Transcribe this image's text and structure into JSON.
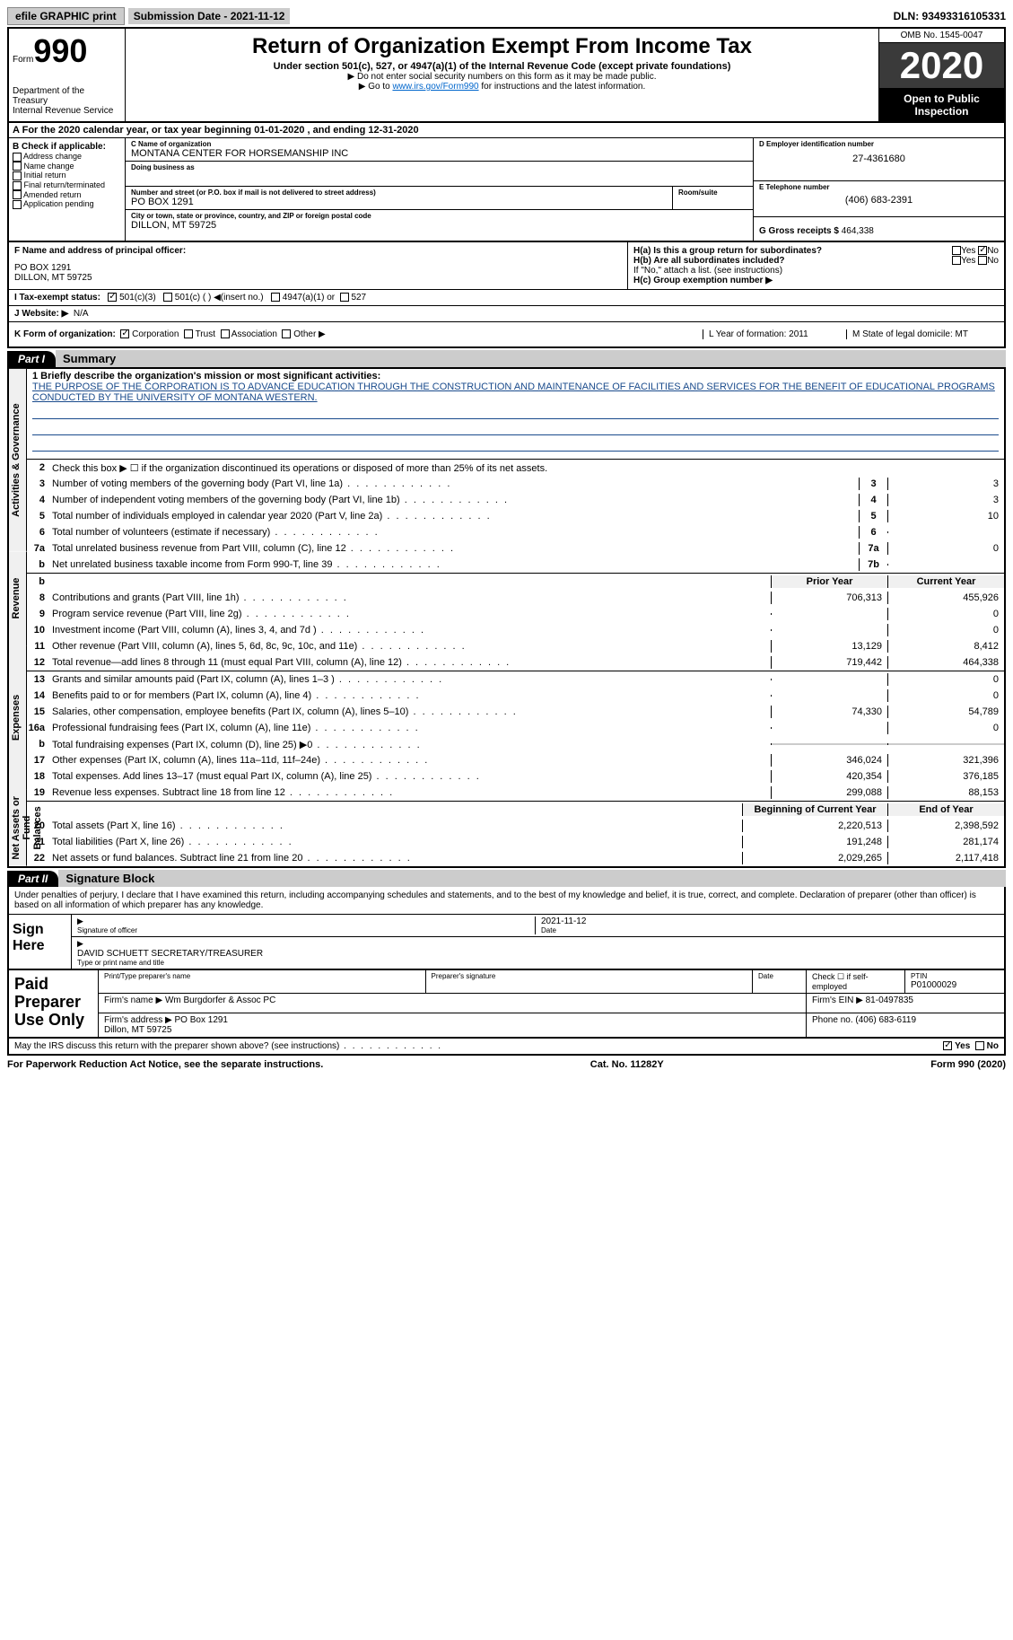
{
  "topbar": {
    "efile": "efile GRAPHIC print",
    "submission_label": "Submission Date - 2021-11-12",
    "dln": "DLN: 93493316105331"
  },
  "header": {
    "form_word": "Form",
    "form_num": "990",
    "dept": "Department of the Treasury\nInternal Revenue Service",
    "title": "Return of Organization Exempt From Income Tax",
    "sub": "Under section 501(c), 527, or 4947(a)(1) of the Internal Revenue Code (except private foundations)",
    "note1": "▶ Do not enter social security numbers on this form as it may be made public.",
    "note2_pre": "▶ Go to ",
    "note2_link": "www.irs.gov/Form990",
    "note2_post": " for instructions and the latest information.",
    "omb": "OMB No. 1545-0047",
    "year": "2020",
    "inspect": "Open to Public Inspection"
  },
  "row_a": "For the 2020 calendar year, or tax year beginning 01-01-2020   , and ending 12-31-2020",
  "col_b": {
    "label": "B Check if applicable:",
    "items": [
      "Address change",
      "Name change",
      "Initial return",
      "Final return/terminated",
      "Amended return",
      "Application pending"
    ]
  },
  "col_c": {
    "name_label": "C Name of organization",
    "name": "MONTANA CENTER FOR HORSEMANSHIP INC",
    "dba_label": "Doing business as",
    "dba": "",
    "street_label": "Number and street (or P.O. box if mail is not delivered to street address)",
    "street": "PO BOX 1291",
    "room_label": "Room/suite",
    "room": "",
    "city_label": "City or town, state or province, country, and ZIP or foreign postal code",
    "city": "DILLON, MT  59725"
  },
  "col_de": {
    "d_label": "D Employer identification number",
    "d_val": "27-4361680",
    "e_label": "E Telephone number",
    "e_val": "(406) 683-2391",
    "g_label": "G Gross receipts $",
    "g_val": "464,338"
  },
  "row_f": {
    "label": "F  Name and address of principal officer:",
    "addr1": "PO BOX 1291",
    "addr2": "DILLON, MT  59725"
  },
  "row_h": {
    "ha": "H(a)  Is this a group return for subordinates?",
    "ha_yes": "Yes",
    "ha_no": "No",
    "hb": "H(b)  Are all subordinates included?",
    "hb_yes": "Yes",
    "hb_no": "No",
    "hb_note": "If \"No,\" attach a list. (see instructions)",
    "hc": "H(c)  Group exemption number ▶"
  },
  "row_i": {
    "label": "I   Tax-exempt status:",
    "o1": "501(c)(3)",
    "o2": "501(c) (  ) ◀(insert no.)",
    "o3": "4947(a)(1) or",
    "o4": "527"
  },
  "row_j": {
    "label": "J   Website: ▶",
    "val": "N/A"
  },
  "row_k": {
    "label": "K Form of organization:",
    "o1": "Corporation",
    "o2": "Trust",
    "o3": "Association",
    "o4": "Other ▶",
    "l": "L Year of formation: 2011",
    "m": "M State of legal domicile: MT"
  },
  "part1": {
    "tab": "Part I",
    "title": "Summary",
    "mission_label": "1  Briefly describe the organization's mission or most significant activities:",
    "mission": "THE PURPOSE OF THE CORPORATION IS TO ADVANCE EDUCATION THROUGH THE CONSTRUCTION AND MAINTENANCE OF FACILITIES AND SERVICES FOR THE BENEFIT OF EDUCATIONAL PROGRAMS CONDUCTED BY THE UNIVERSITY OF MONTANA WESTERN.",
    "line2": "Check this box ▶ ☐  if the organization discontinued its operations or disposed of more than 25% of its net assets.",
    "hdr_prior": "Prior Year",
    "hdr_current": "Current Year",
    "hdr_begin": "Beginning of Current Year",
    "hdr_end": "End of Year",
    "rows_gov": [
      {
        "n": "3",
        "d": "Number of voting members of the governing body (Part VI, line 1a)",
        "c": "3",
        "v": "3"
      },
      {
        "n": "4",
        "d": "Number of independent voting members of the governing body (Part VI, line 1b)",
        "c": "4",
        "v": "3"
      },
      {
        "n": "5",
        "d": "Total number of individuals employed in calendar year 2020 (Part V, line 2a)",
        "c": "5",
        "v": "10"
      },
      {
        "n": "6",
        "d": "Total number of volunteers (estimate if necessary)",
        "c": "6",
        "v": ""
      },
      {
        "n": "7a",
        "d": "Total unrelated business revenue from Part VIII, column (C), line 12",
        "c": "7a",
        "v": "0"
      },
      {
        "n": "b",
        "d": "Net unrelated business taxable income from Form 990-T, line 39",
        "c": "7b",
        "v": ""
      }
    ],
    "rows_rev": [
      {
        "n": "8",
        "d": "Contributions and grants (Part VIII, line 1h)",
        "p": "706,313",
        "v": "455,926"
      },
      {
        "n": "9",
        "d": "Program service revenue (Part VIII, line 2g)",
        "p": "",
        "v": "0"
      },
      {
        "n": "10",
        "d": "Investment income (Part VIII, column (A), lines 3, 4, and 7d )",
        "p": "",
        "v": "0"
      },
      {
        "n": "11",
        "d": "Other revenue (Part VIII, column (A), lines 5, 6d, 8c, 9c, 10c, and 11e)",
        "p": "13,129",
        "v": "8,412"
      },
      {
        "n": "12",
        "d": "Total revenue—add lines 8 through 11 (must equal Part VIII, column (A), line 12)",
        "p": "719,442",
        "v": "464,338"
      }
    ],
    "rows_exp": [
      {
        "n": "13",
        "d": "Grants and similar amounts paid (Part IX, column (A), lines 1–3 )",
        "p": "",
        "v": "0"
      },
      {
        "n": "14",
        "d": "Benefits paid to or for members (Part IX, column (A), line 4)",
        "p": "",
        "v": "0"
      },
      {
        "n": "15",
        "d": "Salaries, other compensation, employee benefits (Part IX, column (A), lines 5–10)",
        "p": "74,330",
        "v": "54,789"
      },
      {
        "n": "16a",
        "d": "Professional fundraising fees (Part IX, column (A), line 11e)",
        "p": "",
        "v": "0"
      },
      {
        "n": "b",
        "d": "Total fundraising expenses (Part IX, column (D), line 25) ▶0",
        "p": "shaded",
        "v": "shaded"
      },
      {
        "n": "17",
        "d": "Other expenses (Part IX, column (A), lines 11a–11d, 11f–24e)",
        "p": "346,024",
        "v": "321,396"
      },
      {
        "n": "18",
        "d": "Total expenses. Add lines 13–17 (must equal Part IX, column (A), line 25)",
        "p": "420,354",
        "v": "376,185"
      },
      {
        "n": "19",
        "d": "Revenue less expenses. Subtract line 18 from line 12",
        "p": "299,088",
        "v": "88,153"
      }
    ],
    "rows_net": [
      {
        "n": "20",
        "d": "Total assets (Part X, line 16)",
        "p": "2,220,513",
        "v": "2,398,592"
      },
      {
        "n": "21",
        "d": "Total liabilities (Part X, line 26)",
        "p": "191,248",
        "v": "281,174"
      },
      {
        "n": "22",
        "d": "Net assets or fund balances. Subtract line 21 from line 20",
        "p": "2,029,265",
        "v": "2,117,418"
      }
    ],
    "vtab_gov": "Activities & Governance",
    "vtab_rev": "Revenue",
    "vtab_exp": "Expenses",
    "vtab_net": "Net Assets or Fund Balances"
  },
  "part2": {
    "tab": "Part II",
    "title": "Signature Block",
    "penalty": "Under penalties of perjury, I declare that I have examined this return, including accompanying schedules and statements, and to the best of my knowledge and belief, it is true, correct, and complete. Declaration of preparer (other than officer) is based on all information of which preparer has any knowledge.",
    "sign_here": "Sign Here",
    "sig_officer": "Signature of officer",
    "sig_date": "Date",
    "sig_date_val": "2021-11-12",
    "sig_name_label": "Type or print name and title",
    "sig_name_val": "DAVID SCHUETT  SECRETARY/TREASURER",
    "paid": "Paid Preparer Use Only",
    "pp_name_label": "Print/Type preparer's name",
    "pp_sig_label": "Preparer's signature",
    "pp_date_label": "Date",
    "pp_check": "Check ☐ if self-employed",
    "pp_ptin_label": "PTIN",
    "pp_ptin": "P01000029",
    "pp_firm_label": "Firm's name    ▶",
    "pp_firm": "Wm Burgdorfer & Assoc PC",
    "pp_ein_label": "Firm's EIN ▶",
    "pp_ein": "81-0497835",
    "pp_addr_label": "Firm's address ▶",
    "pp_addr": "PO Box 1291\nDillon, MT  59725",
    "pp_phone_label": "Phone no.",
    "pp_phone": "(406) 683-6119",
    "may_irs": "May the IRS discuss this return with the preparer shown above? (see instructions)",
    "may_yes": "Yes",
    "may_no": "No"
  },
  "footer": {
    "left": "For Paperwork Reduction Act Notice, see the separate instructions.",
    "mid": "Cat. No. 11282Y",
    "right": "Form 990 (2020)"
  }
}
